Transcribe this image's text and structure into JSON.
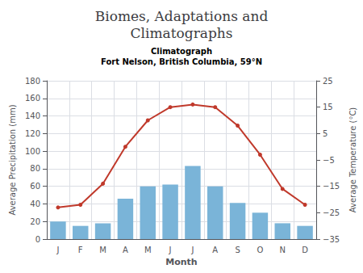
{
  "chart_data": {
    "type": "bar",
    "title": "Biomes, Adaptations and\nClimatographs",
    "subtitle": "Climatograph\nFort Nelson, British Columbia, 59°N",
    "xlabel": "Month",
    "ylabel": "Average Precipitation (mm)",
    "y2label": "Average Temperature (°C)",
    "categories": [
      "J",
      "F",
      "M",
      "A",
      "M",
      "J",
      "J",
      "A",
      "S",
      "O",
      "N",
      "D"
    ],
    "series": [
      {
        "type": "bar",
        "color": "#7ab4d8",
        "values": [
          20,
          15,
          18,
          46,
          60,
          62,
          83,
          60,
          41,
          30,
          18,
          15
        ]
      },
      {
        "type": "line",
        "axis": "y2",
        "color": "#c0392b",
        "marker": "circle",
        "values": [
          -23,
          -22,
          -14,
          0,
          10,
          15,
          16,
          15,
          8,
          -3,
          -16,
          -22
        ]
      }
    ],
    "ylim": [
      0,
      180
    ],
    "yticks": [
      0,
      20,
      40,
      60,
      80,
      100,
      120,
      140,
      160,
      180
    ],
    "y2lim": [
      -35,
      25
    ],
    "y2ticks": [
      {
        "value": -35,
        "label": "−35"
      },
      {
        "value": -25,
        "label": "−25"
      },
      {
        "value": -15,
        "label": "−15"
      },
      {
        "value": -5,
        "label": "−5"
      },
      5,
      15,
      25
    ],
    "grid": true
  }
}
